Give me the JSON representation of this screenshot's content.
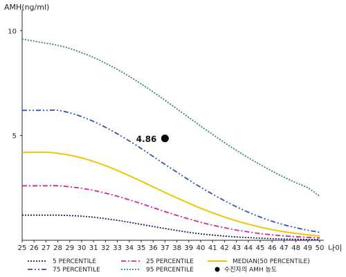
{
  "chart_data": {
    "type": "line",
    "ylabel": "AMH(ng/ml)",
    "xlabel": "나이",
    "x": [
      25,
      26,
      27,
      28,
      29,
      30,
      31,
      32,
      33,
      34,
      35,
      36,
      37,
      38,
      39,
      40,
      41,
      42,
      43,
      44,
      45,
      46,
      47,
      48,
      49,
      50
    ],
    "ylim": [
      0,
      11
    ],
    "y_ticks": [
      5,
      10
    ],
    "series": [
      {
        "name": "5 PERCENTILE",
        "color": "#1a1a6e",
        "style": "dotted",
        "values": [
          1.2,
          1.2,
          1.2,
          1.2,
          1.18,
          1.15,
          1.1,
          1.03,
          0.95,
          0.86,
          0.76,
          0.66,
          0.56,
          0.47,
          0.38,
          0.31,
          0.25,
          0.2,
          0.16,
          0.13,
          0.1,
          0.08,
          0.06,
          0.05,
          0.04,
          0.03
        ]
      },
      {
        "name": "25 PERCENTILE",
        "color": "#e0209a",
        "style": "dashdot",
        "values": [
          2.6,
          2.6,
          2.6,
          2.6,
          2.55,
          2.48,
          2.38,
          2.25,
          2.1,
          1.93,
          1.75,
          1.56,
          1.37,
          1.19,
          1.02,
          0.86,
          0.72,
          0.6,
          0.49,
          0.4,
          0.32,
          0.26,
          0.21,
          0.17,
          0.14,
          0.11
        ]
      },
      {
        "name": "MEDIAN(50 PERCENTILE)",
        "color": "#f2c500",
        "style": "solid",
        "values": [
          4.2,
          4.2,
          4.2,
          4.15,
          4.06,
          3.93,
          3.76,
          3.56,
          3.33,
          3.08,
          2.82,
          2.55,
          2.28,
          2.02,
          1.77,
          1.53,
          1.31,
          1.11,
          0.93,
          0.77,
          0.63,
          0.51,
          0.41,
          0.33,
          0.26,
          0.2
        ]
      },
      {
        "name": "75 PERCENTILE",
        "color": "#2f4fc0",
        "style": "dashdotdot",
        "values": [
          6.2,
          6.2,
          6.2,
          6.2,
          6.08,
          5.9,
          5.67,
          5.39,
          5.08,
          4.74,
          4.38,
          4.0,
          3.62,
          3.25,
          2.88,
          2.53,
          2.2,
          1.89,
          1.6,
          1.34,
          1.11,
          0.91,
          0.74,
          0.6,
          0.48,
          0.38
        ]
      },
      {
        "name": "95 PERCENTILE",
        "color": "#2e8b4e",
        "style": "dotted",
        "values": [
          9.6,
          9.5,
          9.4,
          9.3,
          9.15,
          8.95,
          8.72,
          8.45,
          8.15,
          7.82,
          7.46,
          7.08,
          6.68,
          6.27,
          5.86,
          5.45,
          5.05,
          4.66,
          4.29,
          3.94,
          3.61,
          3.3,
          3.01,
          2.75,
          2.5,
          2.1
        ]
      }
    ],
    "point": {
      "name": "수진자의 AMH 농도",
      "x": 37,
      "y": 4.86,
      "label": "4.86",
      "color": "#000000"
    },
    "legend_position": "bottom",
    "legend_rows": [
      [
        "5 PERCENTILE",
        "25 PERCENTILE",
        "MEDIAN(50 PERCENTILE)"
      ],
      [
        "75 PERCENTILE",
        "95 PERCENTILE",
        "수진자의 AMH 농도"
      ]
    ]
  }
}
